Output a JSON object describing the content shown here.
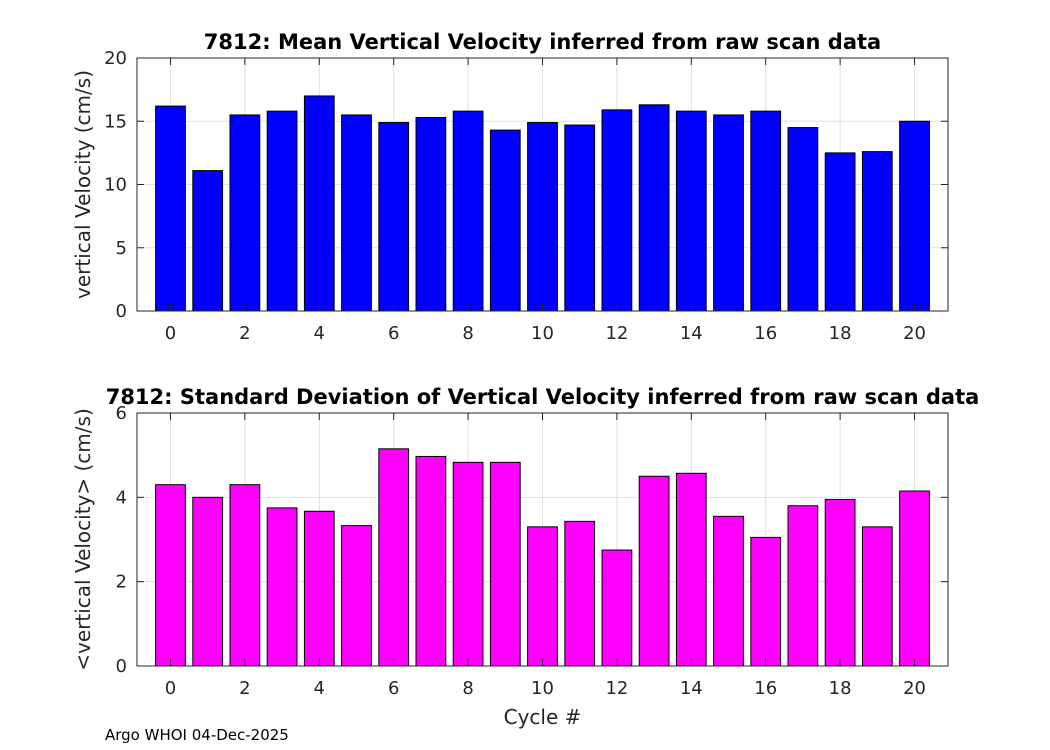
{
  "chart_data": [
    {
      "type": "bar",
      "title": "7812: Mean Vertical Velocity inferred from raw scan data",
      "xlabel": "",
      "ylabel": "vertical Velocity (cm/s)",
      "categories": [
        0,
        1,
        2,
        3,
        4,
        5,
        6,
        7,
        8,
        9,
        10,
        11,
        12,
        13,
        14,
        15,
        16,
        17,
        18,
        19,
        20
      ],
      "values": [
        16.2,
        11.1,
        15.5,
        15.8,
        17.0,
        15.5,
        14.9,
        15.3,
        15.8,
        14.3,
        14.9,
        14.7,
        15.9,
        16.3,
        15.8,
        15.5,
        15.8,
        14.5,
        12.5,
        12.6,
        15.0
      ],
      "xlim": [
        -0.9,
        20.9
      ],
      "ylim": [
        0,
        20
      ],
      "xticks": [
        "0",
        "2",
        "4",
        "6",
        "8",
        "10",
        "12",
        "14",
        "16",
        "18",
        "20"
      ],
      "yticks": [
        "0",
        "5",
        "10",
        "15",
        "20"
      ],
      "grid": true,
      "bar_color": "#0000ff"
    },
    {
      "type": "bar",
      "title": "7812: Standard Deviation of Vertical Velocity inferred from raw scan data",
      "xlabel": "Cycle #",
      "ylabel": "<vertical Velocity> (cm/s)",
      "categories": [
        0,
        1,
        2,
        3,
        4,
        5,
        6,
        7,
        8,
        9,
        10,
        11,
        12,
        13,
        14,
        15,
        16,
        17,
        18,
        19,
        20
      ],
      "values": [
        4.3,
        4.0,
        4.3,
        3.75,
        3.67,
        3.33,
        5.15,
        4.97,
        4.83,
        4.83,
        3.3,
        3.43,
        2.75,
        4.5,
        4.57,
        3.55,
        3.05,
        3.8,
        3.95,
        3.3,
        4.15
      ],
      "xlim": [
        -0.9,
        20.9
      ],
      "ylim": [
        0,
        6
      ],
      "xticks": [
        "0",
        "2",
        "4",
        "6",
        "8",
        "10",
        "12",
        "14",
        "16",
        "18",
        "20"
      ],
      "yticks": [
        "0",
        "2",
        "4",
        "6"
      ],
      "grid": true,
      "bar_color": "#ff00ff"
    }
  ],
  "footer": "Argo WHOI 04-Dec-2025"
}
